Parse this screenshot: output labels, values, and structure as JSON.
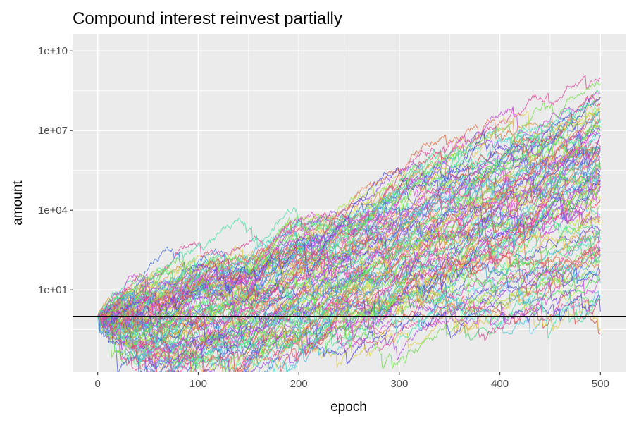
{
  "chart_data": {
    "type": "line",
    "title": "Compound interest reinvest partially",
    "xlabel": "epoch",
    "ylabel": "amount",
    "xlim": [
      -25,
      525
    ],
    "ylim": [
      0.0079,
      44000000000
    ],
    "y_scale": "log10",
    "x_ticks": [
      0,
      100,
      200,
      300,
      400,
      500
    ],
    "x_tick_labels": [
      "0",
      "100",
      "200",
      "300",
      "400",
      "500"
    ],
    "y_ticks": [
      10,
      10000,
      10000000,
      10000000000
    ],
    "y_tick_labels": [
      "1e+01",
      "1e+04",
      "1e+07",
      "1e+10"
    ],
    "reference_line_y": 1,
    "grid": true,
    "legend": "none",
    "series_count": 100,
    "epochs": 500,
    "start_value": 1,
    "series_envelope": {
      "x": [
        0,
        50,
        100,
        150,
        200,
        250,
        300,
        350,
        400,
        450,
        500
      ],
      "low": [
        1,
        0.08,
        0.09,
        0.2,
        0.5,
        1,
        2,
        5,
        8,
        15,
        30
      ],
      "median": [
        1,
        5,
        30,
        100,
        500,
        2000,
        10000,
        50000,
        200000,
        1000000,
        5000000
      ],
      "high": [
        1,
        100,
        2000,
        3000,
        100000,
        200000,
        5000000,
        50000000,
        300000000,
        1500000000,
        12000000000
      ]
    }
  }
}
